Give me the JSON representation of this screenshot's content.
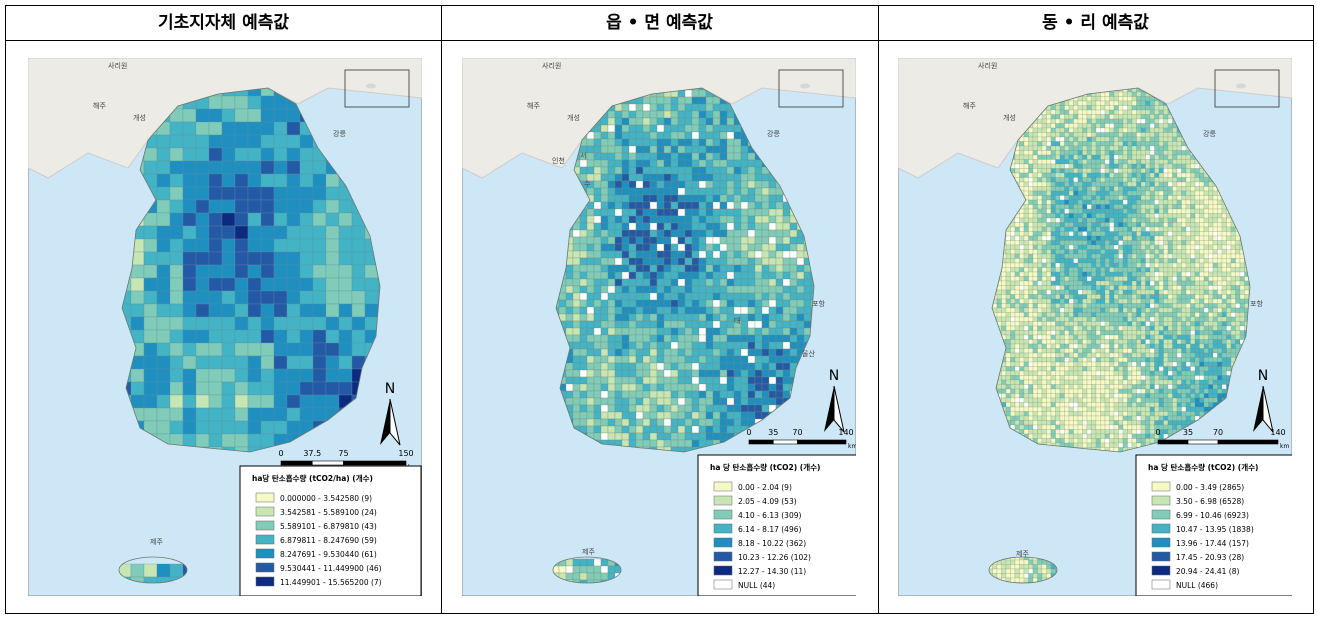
{
  "panels": [
    {
      "title": "기초지자체 예측값",
      "legend": {
        "title": "ha당 탄소흡수량 (tCO2/ha) (개수)",
        "items": [
          {
            "label": "0.000000 - 3.542580 (9)",
            "color": "#f6f8c6"
          },
          {
            "label": "3.542581 - 5.589100 (24)",
            "color": "#c8e6b4"
          },
          {
            "label": "5.589101 - 6.879810 (43)",
            "color": "#80ccb8"
          },
          {
            "label": "6.879811 - 8.247690 (59)",
            "color": "#43b3c6"
          },
          {
            "label": "8.247691 - 9.530440 (61)",
            "color": "#1f8fc0"
          },
          {
            "label": "9.530441 - 11.449900 (46)",
            "color": "#2459a6"
          },
          {
            "label": "11.449901 - 15.565200 (7)",
            "color": "#0c2a80"
          }
        ]
      },
      "scale": {
        "ticks": [
          0,
          37.5,
          75,
          150
        ],
        "unit": "km"
      },
      "north": "N",
      "places": [
        "사리원",
        "해주",
        "개성",
        "강릉",
        "제주"
      ]
    },
    {
      "title": "읍 • 면 예측값",
      "legend": {
        "title": "ha 당 탄소흡수량 (tCO2) (개수)",
        "items": [
          {
            "label": "0.00 - 2.04 (9)",
            "color": "#f6f8c6"
          },
          {
            "label": "2.05 - 4.09 (53)",
            "color": "#c8e6b4"
          },
          {
            "label": "4.10 - 6.13 (309)",
            "color": "#80ccb8"
          },
          {
            "label": "6.14 - 8.17 (496)",
            "color": "#43b3c6"
          },
          {
            "label": "8.18 - 10.22 (362)",
            "color": "#1f8fc0"
          },
          {
            "label": "10.23 - 12.26 (102)",
            "color": "#2459a6"
          },
          {
            "label": "12.27 - 14.30 (11)",
            "color": "#0c2a80"
          },
          {
            "label": "NULL (44)",
            "color": "#ffffff"
          }
        ]
      },
      "scale": {
        "ticks": [
          0,
          35,
          70,
          140
        ],
        "unit": "km"
      },
      "north": "N",
      "places": [
        "사리원",
        "해주",
        "개성",
        "강릉",
        "인천",
        "서",
        "수",
        "대",
        "울산",
        "포항",
        "제주"
      ]
    },
    {
      "title": "동 • 리 예측값",
      "legend": {
        "title": "ha 당 탄소흡수량 (tCO2) (개수)",
        "items": [
          {
            "label": "0.00 - 3.49 (2865)",
            "color": "#f6f8c6"
          },
          {
            "label": "3.50 - 6.98 (6528)",
            "color": "#c8e6b4"
          },
          {
            "label": "6.99 - 10.46 (6923)",
            "color": "#80ccb8"
          },
          {
            "label": "10.47 - 13.95 (1838)",
            "color": "#43b3c6"
          },
          {
            "label": "13.96 - 17.44 (157)",
            "color": "#1f8fc0"
          },
          {
            "label": "17.45 - 20.93 (28)",
            "color": "#2459a6"
          },
          {
            "label": "20.94 - 24.41 (8)",
            "color": "#0c2a80"
          },
          {
            "label": "NULL (466)",
            "color": "#ffffff"
          }
        ]
      },
      "scale": {
        "ticks": [
          0,
          35,
          70,
          140
        ],
        "unit": "km"
      },
      "north": "N",
      "places": [
        "사리원",
        "해주",
        "개성",
        "강릉",
        "포항",
        "제주"
      ]
    }
  ]
}
